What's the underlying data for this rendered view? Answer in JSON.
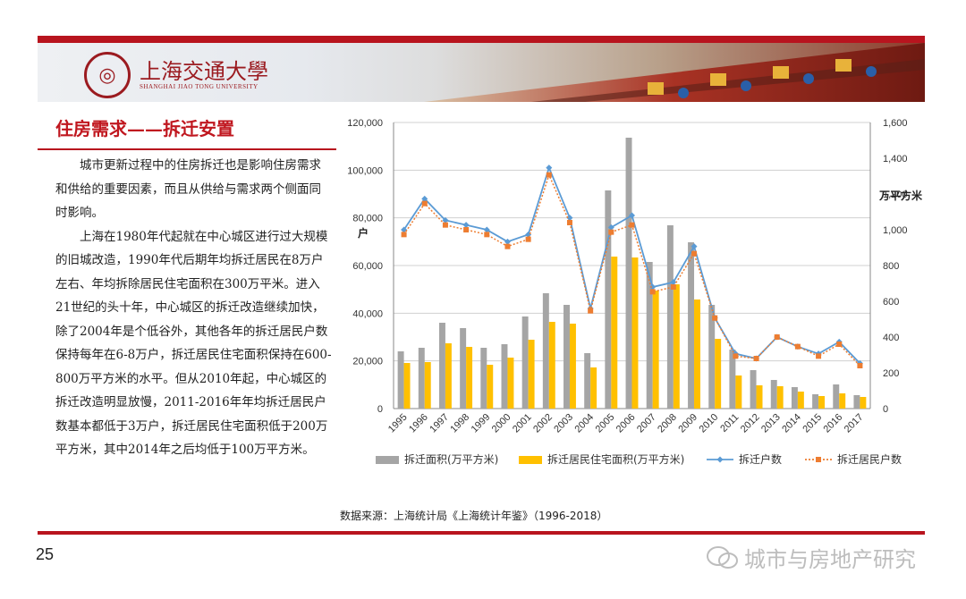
{
  "header": {
    "university_cn": "上海交通大學",
    "university_en": "SHANGHAI JIAO TONG UNIVERSITY"
  },
  "section_title": "住房需求——拆迁安置",
  "paragraphs": [
    "城市更新过程中的住房拆迁也是影响住房需求和供给的重要因素，而且从供给与需求两个侧面同时影响。",
    "上海在1980年代起就在中心城区进行过大规模的旧城改造，1990年代后期年均拆迁居民在8万户左右、年均拆除居民住宅面积在300万平米。进入21世纪的头十年，中心城区的拆迁改造继续加快，除了2004年是个低谷外，其他各年的拆迁居民户数保持每年在6-8万户，拆迁居民住宅面积保持在600-800万平方米的水平。但从2010年起，中心城区的拆迁改造明显放慢，2011-2016年年均拆迁居民户数基本都低于3万户，拆迁居民住宅面积低于200万平方米，其中2014年之后均低于100万平方米。"
  ],
  "source_note": "数据来源：上海统计局《上海统计年鉴》（1996-2018）",
  "page_number": "25",
  "watermark": "城市与房地产研究",
  "colors": {
    "brand_red": "#b8141e",
    "bar_gray": "#a5a5a5",
    "bar_gold": "#ffc000",
    "line_blue": "#5b9bd5",
    "line_orange": "#ed7d31"
  },
  "chart_data": {
    "type": "bar+line",
    "categories": [
      "1995",
      "1996",
      "1997",
      "1998",
      "1999",
      "2000",
      "2001",
      "2002",
      "2003",
      "2004",
      "2005",
      "2006",
      "2007",
      "2008",
      "2009",
      "2010",
      "2011",
      "2012",
      "2013",
      "2014",
      "2015",
      "2016",
      "2017"
    ],
    "left_axis": {
      "label": "户",
      "ylim": [
        0,
        120000
      ],
      "ticks": [
        "0",
        "20,000",
        "40,000",
        "60,000",
        "80,000",
        "100,000",
        "120,000"
      ]
    },
    "right_axis": {
      "label": "万平方米",
      "ylim": [
        0,
        1600
      ],
      "ticks": [
        "0",
        "200",
        "400",
        "600",
        "800",
        "1,000",
        "1,200",
        "1,400",
        "1,600"
      ]
    },
    "series": [
      {
        "name": "拆迁面积(万平方米)",
        "kind": "bar",
        "axis": "right",
        "color": "#a5a5a5",
        "values": [
          320,
          340,
          480,
          450,
          340,
          360,
          515,
          645,
          580,
          310,
          1220,
          1515,
          820,
          1025,
          930,
          580,
          330,
          215,
          160,
          120,
          80,
          135,
          75
        ]
      },
      {
        "name": "拆迁居民住宅面积(万平方米)",
        "kind": "bar",
        "axis": "right",
        "color": "#ffc000",
        "values": [
          255,
          260,
          365,
          345,
          245,
          285,
          385,
          485,
          475,
          230,
          850,
          845,
          660,
          695,
          610,
          390,
          185,
          130,
          125,
          95,
          70,
          85,
          65
        ]
      },
      {
        "name": "拆迁户数",
        "kind": "line",
        "axis": "left",
        "color": "#5b9bd5",
        "marker": "diamond",
        "values": [
          75000,
          88000,
          79000,
          77000,
          75000,
          70000,
          73000,
          101000,
          80000,
          42000,
          76000,
          81000,
          51000,
          53000,
          68000,
          38000,
          23000,
          21000,
          30000,
          26000,
          23000,
          28000,
          19000
        ]
      },
      {
        "name": "拆迁居民户数",
        "kind": "line",
        "axis": "left",
        "color": "#ed7d31",
        "marker": "square",
        "dashed": true,
        "values": [
          73000,
          86000,
          77000,
          75000,
          73000,
          68000,
          71000,
          98000,
          78000,
          41000,
          74000,
          77000,
          49000,
          51000,
          65000,
          38000,
          22000,
          21000,
          30000,
          26000,
          22000,
          27000,
          18000
        ]
      }
    ],
    "legend_position": "bottom",
    "grid": true
  }
}
